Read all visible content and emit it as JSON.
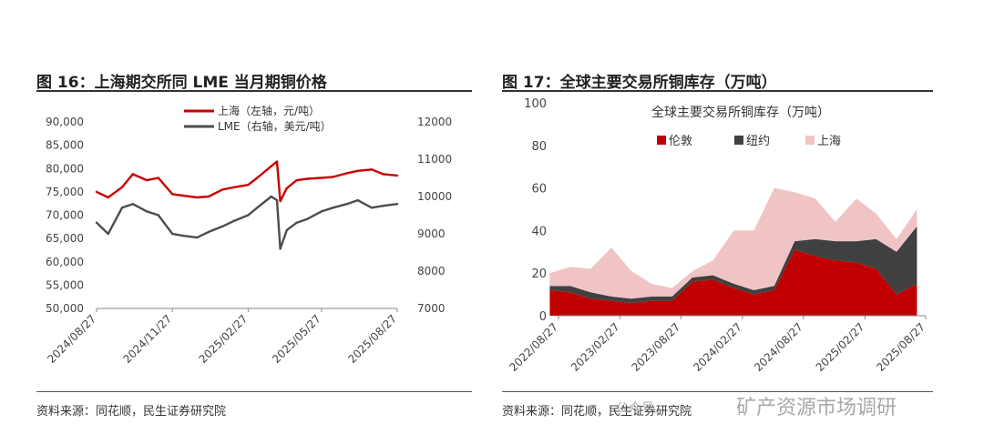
{
  "left": {
    "title": "图 16：上海期交所同 LME 当月期铜价格",
    "source": "资料来源：同花顺，民生证券研究院"
  },
  "right": {
    "title": "图 17：全球主要交易所铜库存（万吨）",
    "source": "资料来源：同花顺，民生证券研究院"
  },
  "watermark": {
    "text": "矿产资源市场调研",
    "sub": "公众号"
  },
  "chart_data": [
    {
      "type": "line",
      "title": "",
      "x_ticks": [
        "2024/08/27",
        "2024/11/27",
        "2025/02/27",
        "2025/05/27",
        "2025/08/27"
      ],
      "y_left": {
        "ylim": [
          50000,
          90000
        ],
        "ticks": [
          "50,000",
          "55,000",
          "60,000",
          "65,000",
          "70,000",
          "75,000",
          "80,000",
          "85,000",
          "90,000"
        ]
      },
      "y_right": {
        "ylim": [
          7000,
          12000
        ],
        "ticks": [
          "7000",
          "8000",
          "9000",
          "10000",
          "11000",
          "12000"
        ]
      },
      "legend_position": "top",
      "series": [
        {
          "name": "上海（左轴，元/吨）",
          "axis": "left",
          "color": "#cc0000",
          "x": [
            "2024/08/27",
            "2024/09/10",
            "2024/09/27",
            "2024/10/10",
            "2024/10/27",
            "2024/11/10",
            "2024/11/27",
            "2024/12/10",
            "2024/12/27",
            "2025/01/10",
            "2025/01/27",
            "2025/02/10",
            "2025/02/27",
            "2025/03/10",
            "2025/03/27",
            "2025/04/03",
            "2025/04/07",
            "2025/04/15",
            "2025/04/27",
            "2025/05/10",
            "2025/05/27",
            "2025/06/10",
            "2025/06/27",
            "2025/07/10",
            "2025/07/27",
            "2025/08/10",
            "2025/08/27"
          ],
          "values": [
            75000,
            73800,
            76000,
            78800,
            77500,
            78000,
            74500,
            74200,
            73800,
            74000,
            75500,
            76000,
            76500,
            78000,
            80500,
            81500,
            73000,
            75800,
            77500,
            77800,
            78000,
            78200,
            79000,
            79500,
            79800,
            78800,
            78500
          ]
        },
        {
          "name": "LME（右轴，美元/吨）",
          "axis": "right",
          "color": "#4d4d4d",
          "x": [
            "2024/08/27",
            "2024/09/10",
            "2024/09/27",
            "2024/10/10",
            "2024/10/27",
            "2024/11/10",
            "2024/11/27",
            "2024/12/10",
            "2024/12/27",
            "2025/01/10",
            "2025/01/27",
            "2025/02/10",
            "2025/02/27",
            "2025/03/10",
            "2025/03/27",
            "2025/04/03",
            "2025/04/07",
            "2025/04/15",
            "2025/04/27",
            "2025/05/10",
            "2025/05/27",
            "2025/06/10",
            "2025/06/27",
            "2025/07/10",
            "2025/07/27",
            "2025/08/10",
            "2025/08/27"
          ],
          "values": [
            9300,
            9000,
            9700,
            9800,
            9600,
            9500,
            9000,
            8950,
            8900,
            9050,
            9200,
            9350,
            9500,
            9700,
            10000,
            9900,
            8600,
            9100,
            9300,
            9400,
            9600,
            9700,
            9800,
            9900,
            9700,
            9750,
            9800
          ]
        }
      ]
    },
    {
      "type": "area",
      "title": "全球主要交易所铜库存（万吨）",
      "x_ticks": [
        "2022/08/27",
        "2023/02/27",
        "2023/08/27",
        "2024/02/27",
        "2024/08/27",
        "2025/02/27",
        "2025/08/27"
      ],
      "ylim": [
        0,
        100
      ],
      "y_ticks": [
        "0",
        "20",
        "40",
        "60",
        "80",
        "100"
      ],
      "legend_position": "top",
      "stacked": true,
      "x": [
        "2022/08",
        "2022/10",
        "2022/12",
        "2023/02",
        "2023/04",
        "2023/06",
        "2023/08",
        "2023/10",
        "2023/12",
        "2024/02",
        "2024/04",
        "2024/06",
        "2024/08",
        "2024/10",
        "2024/12",
        "2025/02",
        "2025/04",
        "2025/06",
        "2025/08"
      ],
      "series": [
        {
          "name": "伦敦",
          "color": "#c00000",
          "values": [
            12,
            11,
            8,
            7,
            6,
            7,
            7,
            16,
            17,
            13,
            10,
            12,
            31,
            28,
            26,
            25,
            22,
            10,
            15
          ]
        },
        {
          "name": "纽约",
          "color": "#404040",
          "values": [
            2,
            3,
            3,
            2,
            2,
            2,
            2,
            2,
            2,
            2,
            2,
            2,
            4,
            8,
            9,
            10,
            14,
            20,
            27
          ]
        },
        {
          "name": "上海",
          "color": "#f0c4c4",
          "values": [
            6,
            9,
            11,
            23,
            13,
            6,
            4,
            3,
            7,
            25,
            28,
            46,
            23,
            19,
            9,
            20,
            12,
            6,
            8
          ]
        }
      ]
    }
  ]
}
